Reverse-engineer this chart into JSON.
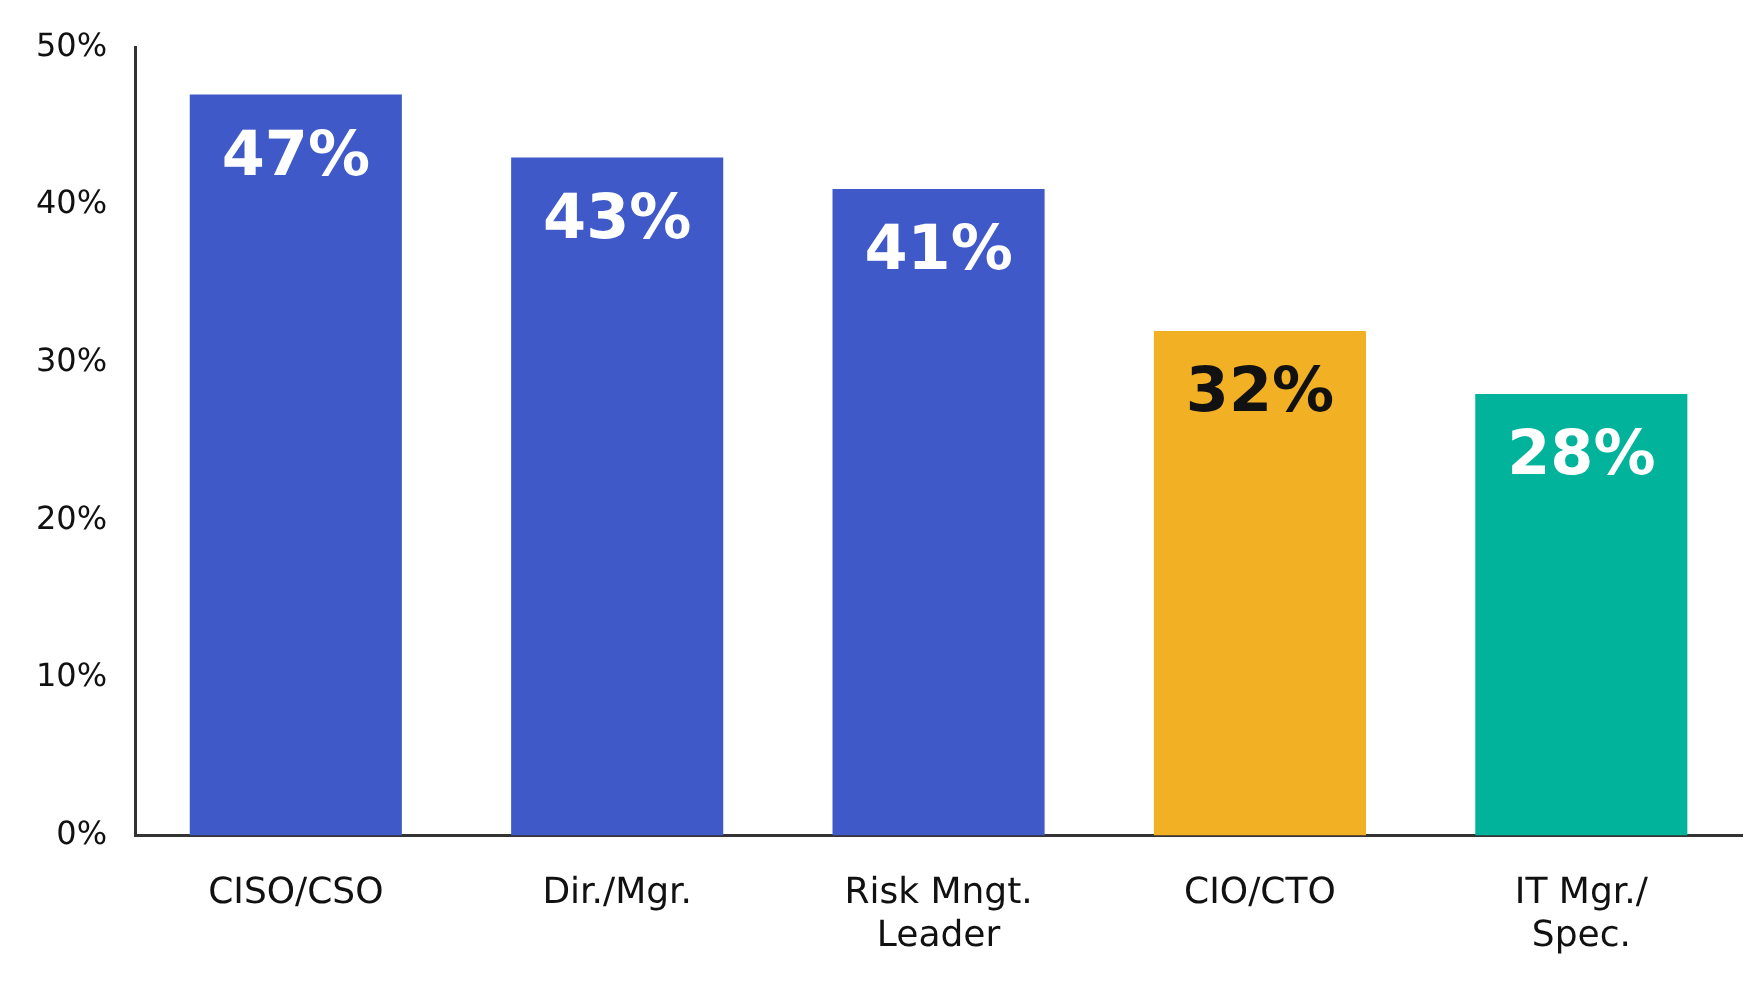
{
  "chart_data": {
    "type": "bar",
    "categories": [
      "CISO/CSO",
      "Dir./Mgr.",
      "Risk Mngt. Leader",
      "CIO/CTO",
      "IT Mgr./ Spec."
    ],
    "values": [
      47,
      43,
      41,
      32,
      28
    ],
    "colors": [
      "#4059c9",
      "#4059c9",
      "#4059c9",
      "#f2b024",
      "#00b39a"
    ],
    "ylim": [
      0,
      50
    ],
    "yticks": [
      {
        "value": 0,
        "label": "0%"
      },
      {
        "value": 10,
        "label": "10%"
      },
      {
        "value": 20,
        "label": "20%"
      },
      {
        "value": 30,
        "label": "30%"
      },
      {
        "value": 40,
        "label": "40%"
      },
      {
        "value": 50,
        "label": "50%"
      }
    ],
    "value_labels": [
      "47%",
      "43%",
      "41%",
      "32%",
      "28%"
    ],
    "grid": false,
    "legend": false
  }
}
